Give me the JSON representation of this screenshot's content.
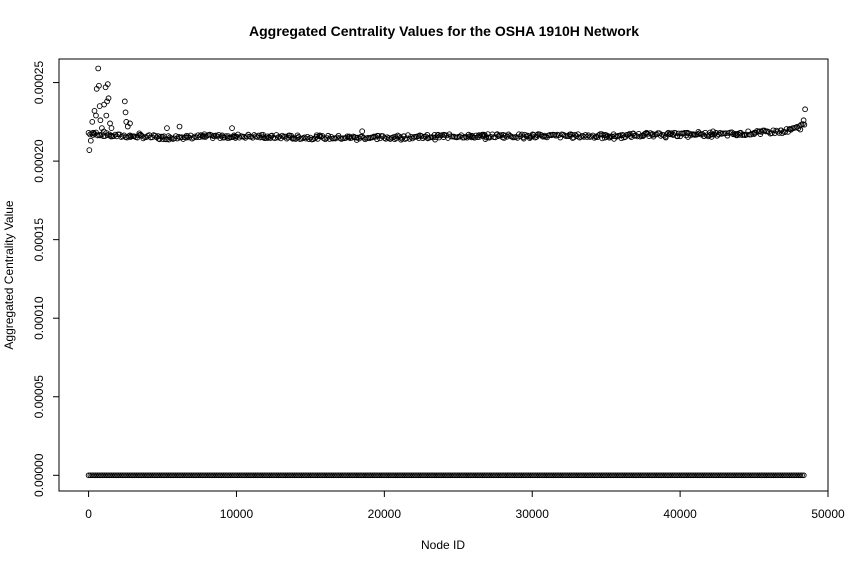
{
  "chart_data": {
    "type": "scatter",
    "title": "Aggregated Centrality Values for the OSHA 1910H Network",
    "xlabel": "Node ID",
    "ylabel": "Aggregated Centrality Value",
    "xlim": [
      -2000,
      50000
    ],
    "ylim": [
      -1e-05,
      0.000265
    ],
    "x_ticks": [
      0,
      10000,
      20000,
      30000,
      40000,
      50000
    ],
    "x_tick_labels": [
      "0",
      "10000",
      "20000",
      "30000",
      "40000",
      "50000"
    ],
    "y_ticks": [
      0,
      5e-05,
      0.0001,
      0.00015,
      0.0002,
      0.00025
    ],
    "y_tick_labels": [
      "0.00000",
      "0.00005",
      "0.00010",
      "0.00015",
      "0.00020",
      "0.00025"
    ],
    "grid": false,
    "legend": "none",
    "marker": "open-circle",
    "marker_color": "#000000",
    "zero_band": {
      "x_start": 0,
      "x_end": 48400,
      "y": 0
    },
    "upper_band": {
      "profile_x": [
        0,
        1000,
        2000,
        3000,
        5000,
        10000,
        15000,
        20000,
        25000,
        30000,
        35000,
        40000,
        43000,
        45000,
        47000,
        48000,
        48400
      ],
      "profile_y": [
        0.000218,
        0.000217,
        0.000216,
        0.000216,
        0.000215,
        0.000216,
        0.000215,
        0.000215,
        0.000216,
        0.000216,
        0.000216,
        0.000217,
        0.000217,
        0.000218,
        0.000219,
        0.000221,
        0.000224
      ]
    },
    "outliers": [
      {
        "x": 50,
        "y": 0.000207
      },
      {
        "x": 150,
        "y": 0.000213
      },
      {
        "x": 250,
        "y": 0.000225
      },
      {
        "x": 300,
        "y": 0.000218
      },
      {
        "x": 400,
        "y": 0.000232
      },
      {
        "x": 500,
        "y": 0.000229
      },
      {
        "x": 550,
        "y": 0.000246
      },
      {
        "x": 650,
        "y": 0.000259
      },
      {
        "x": 700,
        "y": 0.000248
      },
      {
        "x": 750,
        "y": 0.000235
      },
      {
        "x": 800,
        "y": 0.000226
      },
      {
        "x": 900,
        "y": 0.000221
      },
      {
        "x": 1050,
        "y": 0.000236
      },
      {
        "x": 1150,
        "y": 0.000247
      },
      {
        "x": 1200,
        "y": 0.000229
      },
      {
        "x": 1250,
        "y": 0.000238
      },
      {
        "x": 1300,
        "y": 0.000249
      },
      {
        "x": 1350,
        "y": 0.00024
      },
      {
        "x": 1450,
        "y": 0.000224
      },
      {
        "x": 1550,
        "y": 0.000221
      },
      {
        "x": 2450,
        "y": 0.000238
      },
      {
        "x": 2500,
        "y": 0.000231
      },
      {
        "x": 2550,
        "y": 0.000225
      },
      {
        "x": 2650,
        "y": 0.000222
      },
      {
        "x": 2800,
        "y": 0.000224
      },
      {
        "x": 5300,
        "y": 0.000221
      },
      {
        "x": 6150,
        "y": 0.000222
      },
      {
        "x": 9700,
        "y": 0.000221
      },
      {
        "x": 18500,
        "y": 0.000219
      },
      {
        "x": 48350,
        "y": 0.000226
      },
      {
        "x": 48450,
        "y": 0.000233
      }
    ]
  }
}
